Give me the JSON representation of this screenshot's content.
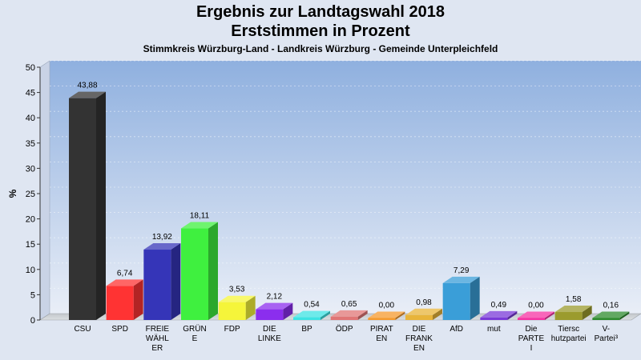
{
  "chart_data": {
    "type": "bar",
    "title": "Ergebnis zur Landtagswahl 2018",
    "title2": "Erststimmen in Prozent",
    "subtitle": "Stimmkreis Würzburg-Land - Landkreis Würzburg - Gemeinde Unterpleichfeld",
    "ylabel": "%",
    "ylim": [
      0,
      50
    ],
    "yticks": [
      "0",
      "5",
      "10",
      "15",
      "20",
      "25",
      "30",
      "35",
      "40",
      "45",
      "50"
    ],
    "grid": true,
    "categories": [
      [
        "CSU"
      ],
      [
        "SPD"
      ],
      [
        "FREIE",
        "WÄHL",
        "ER"
      ],
      [
        "GRÜN",
        "E"
      ],
      [
        "FDP"
      ],
      [
        "DIE",
        "LINKE"
      ],
      [
        "BP"
      ],
      [
        "ÖDP"
      ],
      [
        "PIRAT",
        "EN"
      ],
      [
        "DIE",
        "FRANK",
        "EN"
      ],
      [
        "AfD"
      ],
      [
        "mut"
      ],
      [
        "Die",
        "PARTE",
        "I"
      ],
      [
        "Tiersc",
        "hutzpartei"
      ],
      [
        "V-",
        "Partei³"
      ]
    ],
    "values": [
      43.88,
      6.74,
      13.92,
      18.11,
      3.53,
      2.12,
      0.54,
      0.65,
      0.0,
      0.98,
      7.29,
      0.49,
      0.0,
      1.58,
      0.16
    ],
    "value_labels": [
      "43,88",
      "6,74",
      "13,92",
      "18,11",
      "3,53",
      "2,12",
      "0,54",
      "0,65",
      "0,00",
      "0,98",
      "7,29",
      "0,49",
      "0,00",
      "1,58",
      "0,16"
    ],
    "colors": [
      "#333333",
      "#ff3333",
      "#3535b8",
      "#3ff03f",
      "#f5f53a",
      "#8b2eee",
      "#3de3e3",
      "#e07575",
      "#f59a2e",
      "#e8b43a",
      "#3a9ed8",
      "#7a3ad8",
      "#f533a3",
      "#9b9b2e",
      "#2e8b2e"
    ]
  }
}
